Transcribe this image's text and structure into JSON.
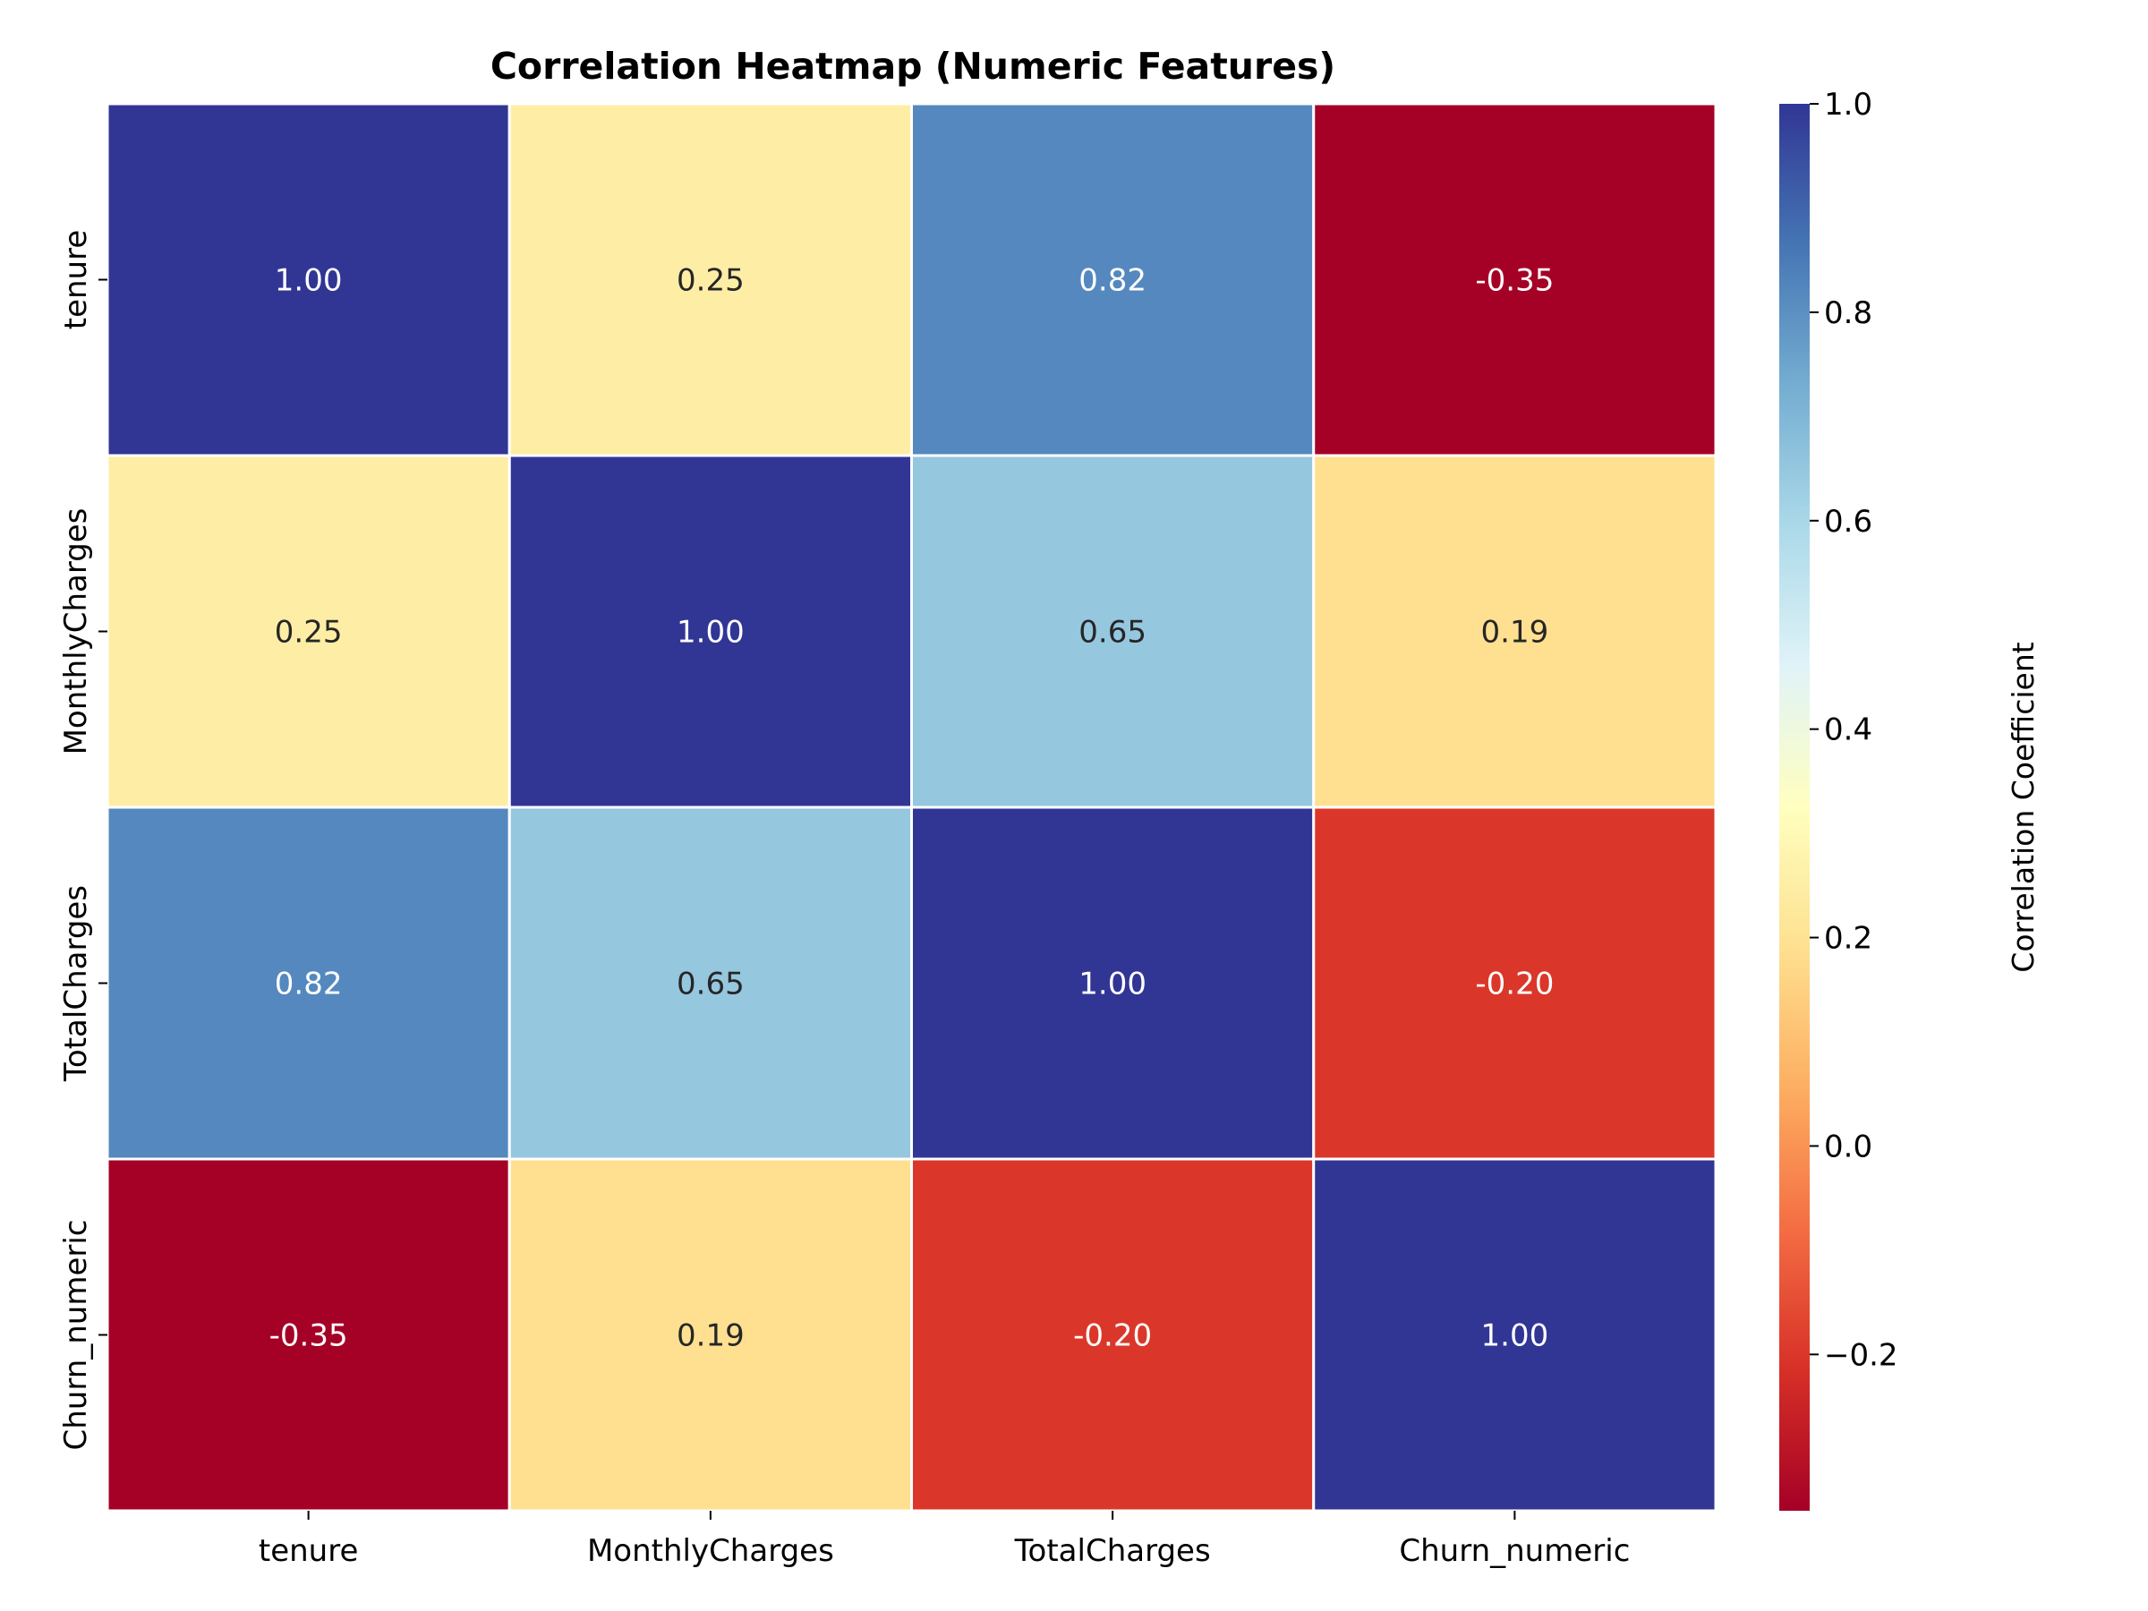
{
  "chart_data": {
    "type": "heatmap",
    "title": "Correlation Heatmap (Numeric Features)",
    "x_categories": [
      "tenure",
      "MonthlyCharges",
      "TotalCharges",
      "Churn_numeric"
    ],
    "y_categories": [
      "tenure",
      "MonthlyCharges",
      "TotalCharges",
      "Churn_numeric"
    ],
    "matrix": [
      [
        1.0,
        0.25,
        0.82,
        -0.35
      ],
      [
        0.25,
        1.0,
        0.65,
        0.19
      ],
      [
        0.82,
        0.65,
        1.0,
        -0.2
      ],
      [
        -0.35,
        0.19,
        -0.2,
        1.0
      ]
    ],
    "annotations": [
      [
        "1.00",
        "0.25",
        "0.82",
        "-0.35"
      ],
      [
        "0.25",
        "1.00",
        "0.65",
        "0.19"
      ],
      [
        "0.82",
        "0.65",
        "1.00",
        "-0.20"
      ],
      [
        "-0.35",
        "0.19",
        "-0.20",
        "1.00"
      ]
    ],
    "colormap": "RdYlBu",
    "vmin": -0.35,
    "vmax": 1.0,
    "colorbar": {
      "label": "Correlation Coefficient",
      "ticks": [
        1.0,
        0.8,
        0.6,
        0.4,
        0.2,
        0.0,
        -0.2
      ],
      "tick_labels": [
        "1.0",
        "0.8",
        "0.6",
        "0.4",
        "0.2",
        "0.0",
        "−0.2"
      ]
    },
    "grid": false
  }
}
